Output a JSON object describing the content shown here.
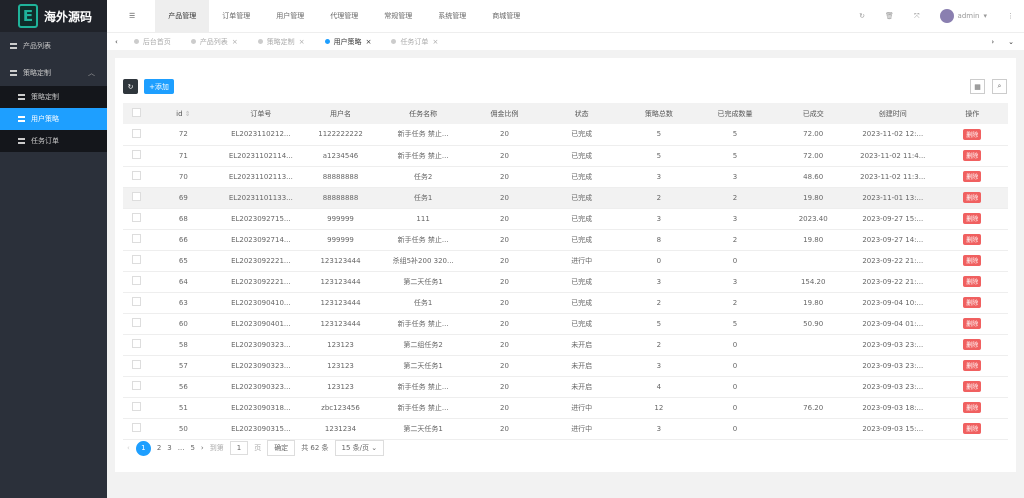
{
  "brand": {
    "logo_letter": "E",
    "name": "海外源码"
  },
  "sidebar": {
    "items": [
      {
        "label": "产品列表"
      },
      {
        "label": "策略定制"
      }
    ],
    "submenu": [
      {
        "label": "策略定制"
      },
      {
        "label": "用户策略",
        "active": true
      },
      {
        "label": "任务订单"
      }
    ]
  },
  "topnav": {
    "items": [
      "产品管理",
      "订单管理",
      "用户管理",
      "代理管理",
      "常规管理",
      "系统管理",
      "商城管理"
    ],
    "active": 0,
    "user": "admin"
  },
  "tabs": [
    {
      "label": "后台首页"
    },
    {
      "label": "产品列表"
    },
    {
      "label": "策略定制"
    },
    {
      "label": "用户策略",
      "active": true
    },
    {
      "label": "任务订单"
    }
  ],
  "toolbar": {
    "add_label": "+添加"
  },
  "table": {
    "columns": [
      "id",
      "订单号",
      "用户名",
      "任务名称",
      "佣金比例",
      "状态",
      "策略总数",
      "已完成数量",
      "已成交",
      "创建时间",
      "操作"
    ],
    "delete_label": "删除",
    "rows": [
      [
        "72",
        "EL2023110212...",
        "1122222222",
        "新手任务 禁止...",
        "20",
        "已完成",
        "5",
        "5",
        "72.00",
        "2023-11-02 12:..."
      ],
      [
        "71",
        "EL20231102114...",
        "a1234546",
        "新手任务 禁止...",
        "20",
        "已完成",
        "5",
        "5",
        "72.00",
        "2023-11-02 11:4..."
      ],
      [
        "70",
        "EL20231102113...",
        "88888888",
        "任务2",
        "20",
        "已完成",
        "3",
        "3",
        "48.60",
        "2023-11-02 11:3..."
      ],
      [
        "69",
        "EL20231101133...",
        "88888888",
        "任务1",
        "20",
        "已完成",
        "2",
        "2",
        "19.80",
        "2023-11-01 13:..."
      ],
      [
        "68",
        "EL2023092715...",
        "999999",
        "111",
        "20",
        "已完成",
        "3",
        "3",
        "2023.40",
        "2023-09-27 15:..."
      ],
      [
        "66",
        "EL2023092714...",
        "999999",
        "新手任务 禁止...",
        "20",
        "已完成",
        "8",
        "2",
        "19.80",
        "2023-09-27 14:..."
      ],
      [
        "65",
        "EL2023092221...",
        "123123444",
        "杀组5补200 320...",
        "20",
        "进行中",
        "0",
        "0",
        "",
        "2023-09-22 21:..."
      ],
      [
        "64",
        "EL2023092221...",
        "123123444",
        "第二天任务1",
        "20",
        "已完成",
        "3",
        "3",
        "154.20",
        "2023-09-22 21:..."
      ],
      [
        "63",
        "EL2023090410...",
        "123123444",
        "任务1",
        "20",
        "已完成",
        "2",
        "2",
        "19.80",
        "2023-09-04 10:..."
      ],
      [
        "60",
        "EL2023090401...",
        "123123444",
        "新手任务 禁止...",
        "20",
        "已完成",
        "5",
        "5",
        "50.90",
        "2023-09-04 01:..."
      ],
      [
        "58",
        "EL2023090323...",
        "123123",
        "第二组任务2",
        "20",
        "未开启",
        "2",
        "0",
        "",
        "2023-09-03 23:..."
      ],
      [
        "57",
        "EL2023090323...",
        "123123",
        "第二天任务1",
        "20",
        "未开启",
        "3",
        "0",
        "",
        "2023-09-03 23:..."
      ],
      [
        "56",
        "EL2023090323...",
        "123123",
        "新手任务 禁止...",
        "20",
        "未开启",
        "4",
        "0",
        "",
        "2023-09-03 23:..."
      ],
      [
        "51",
        "EL2023090318...",
        "zbc123456",
        "新手任务 禁止...",
        "20",
        "进行中",
        "12",
        "0",
        "76.20",
        "2023-09-03 18:..."
      ],
      [
        "50",
        "EL2023090315...",
        "1231234",
        "第二天任务1",
        "20",
        "进行中",
        "3",
        "0",
        "",
        "2023-09-03 15:..."
      ]
    ]
  },
  "pagination": {
    "pages": [
      "1",
      "2",
      "3",
      "...",
      "5"
    ],
    "goto_label": "到第",
    "page_value": "1",
    "page_unit": "页",
    "confirm": "确定",
    "total": "共 62 条",
    "page_size": "15 条/页"
  }
}
